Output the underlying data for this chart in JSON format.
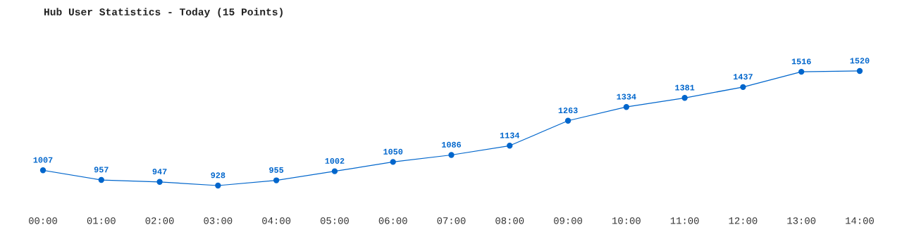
{
  "chart_data": {
    "type": "line",
    "title": "Hub User Statistics - Today (15 Points)",
    "categories": [
      "00:00",
      "01:00",
      "02:00",
      "03:00",
      "04:00",
      "05:00",
      "06:00",
      "07:00",
      "08:00",
      "09:00",
      "10:00",
      "11:00",
      "12:00",
      "13:00",
      "14:00"
    ],
    "values": [
      1007,
      957,
      947,
      928,
      955,
      1002,
      1050,
      1086,
      1134,
      1263,
      1334,
      1381,
      1437,
      1516,
      1520
    ],
    "color": "#0066cc",
    "data_labels": true,
    "marker": "circle",
    "line_style": "solid"
  }
}
